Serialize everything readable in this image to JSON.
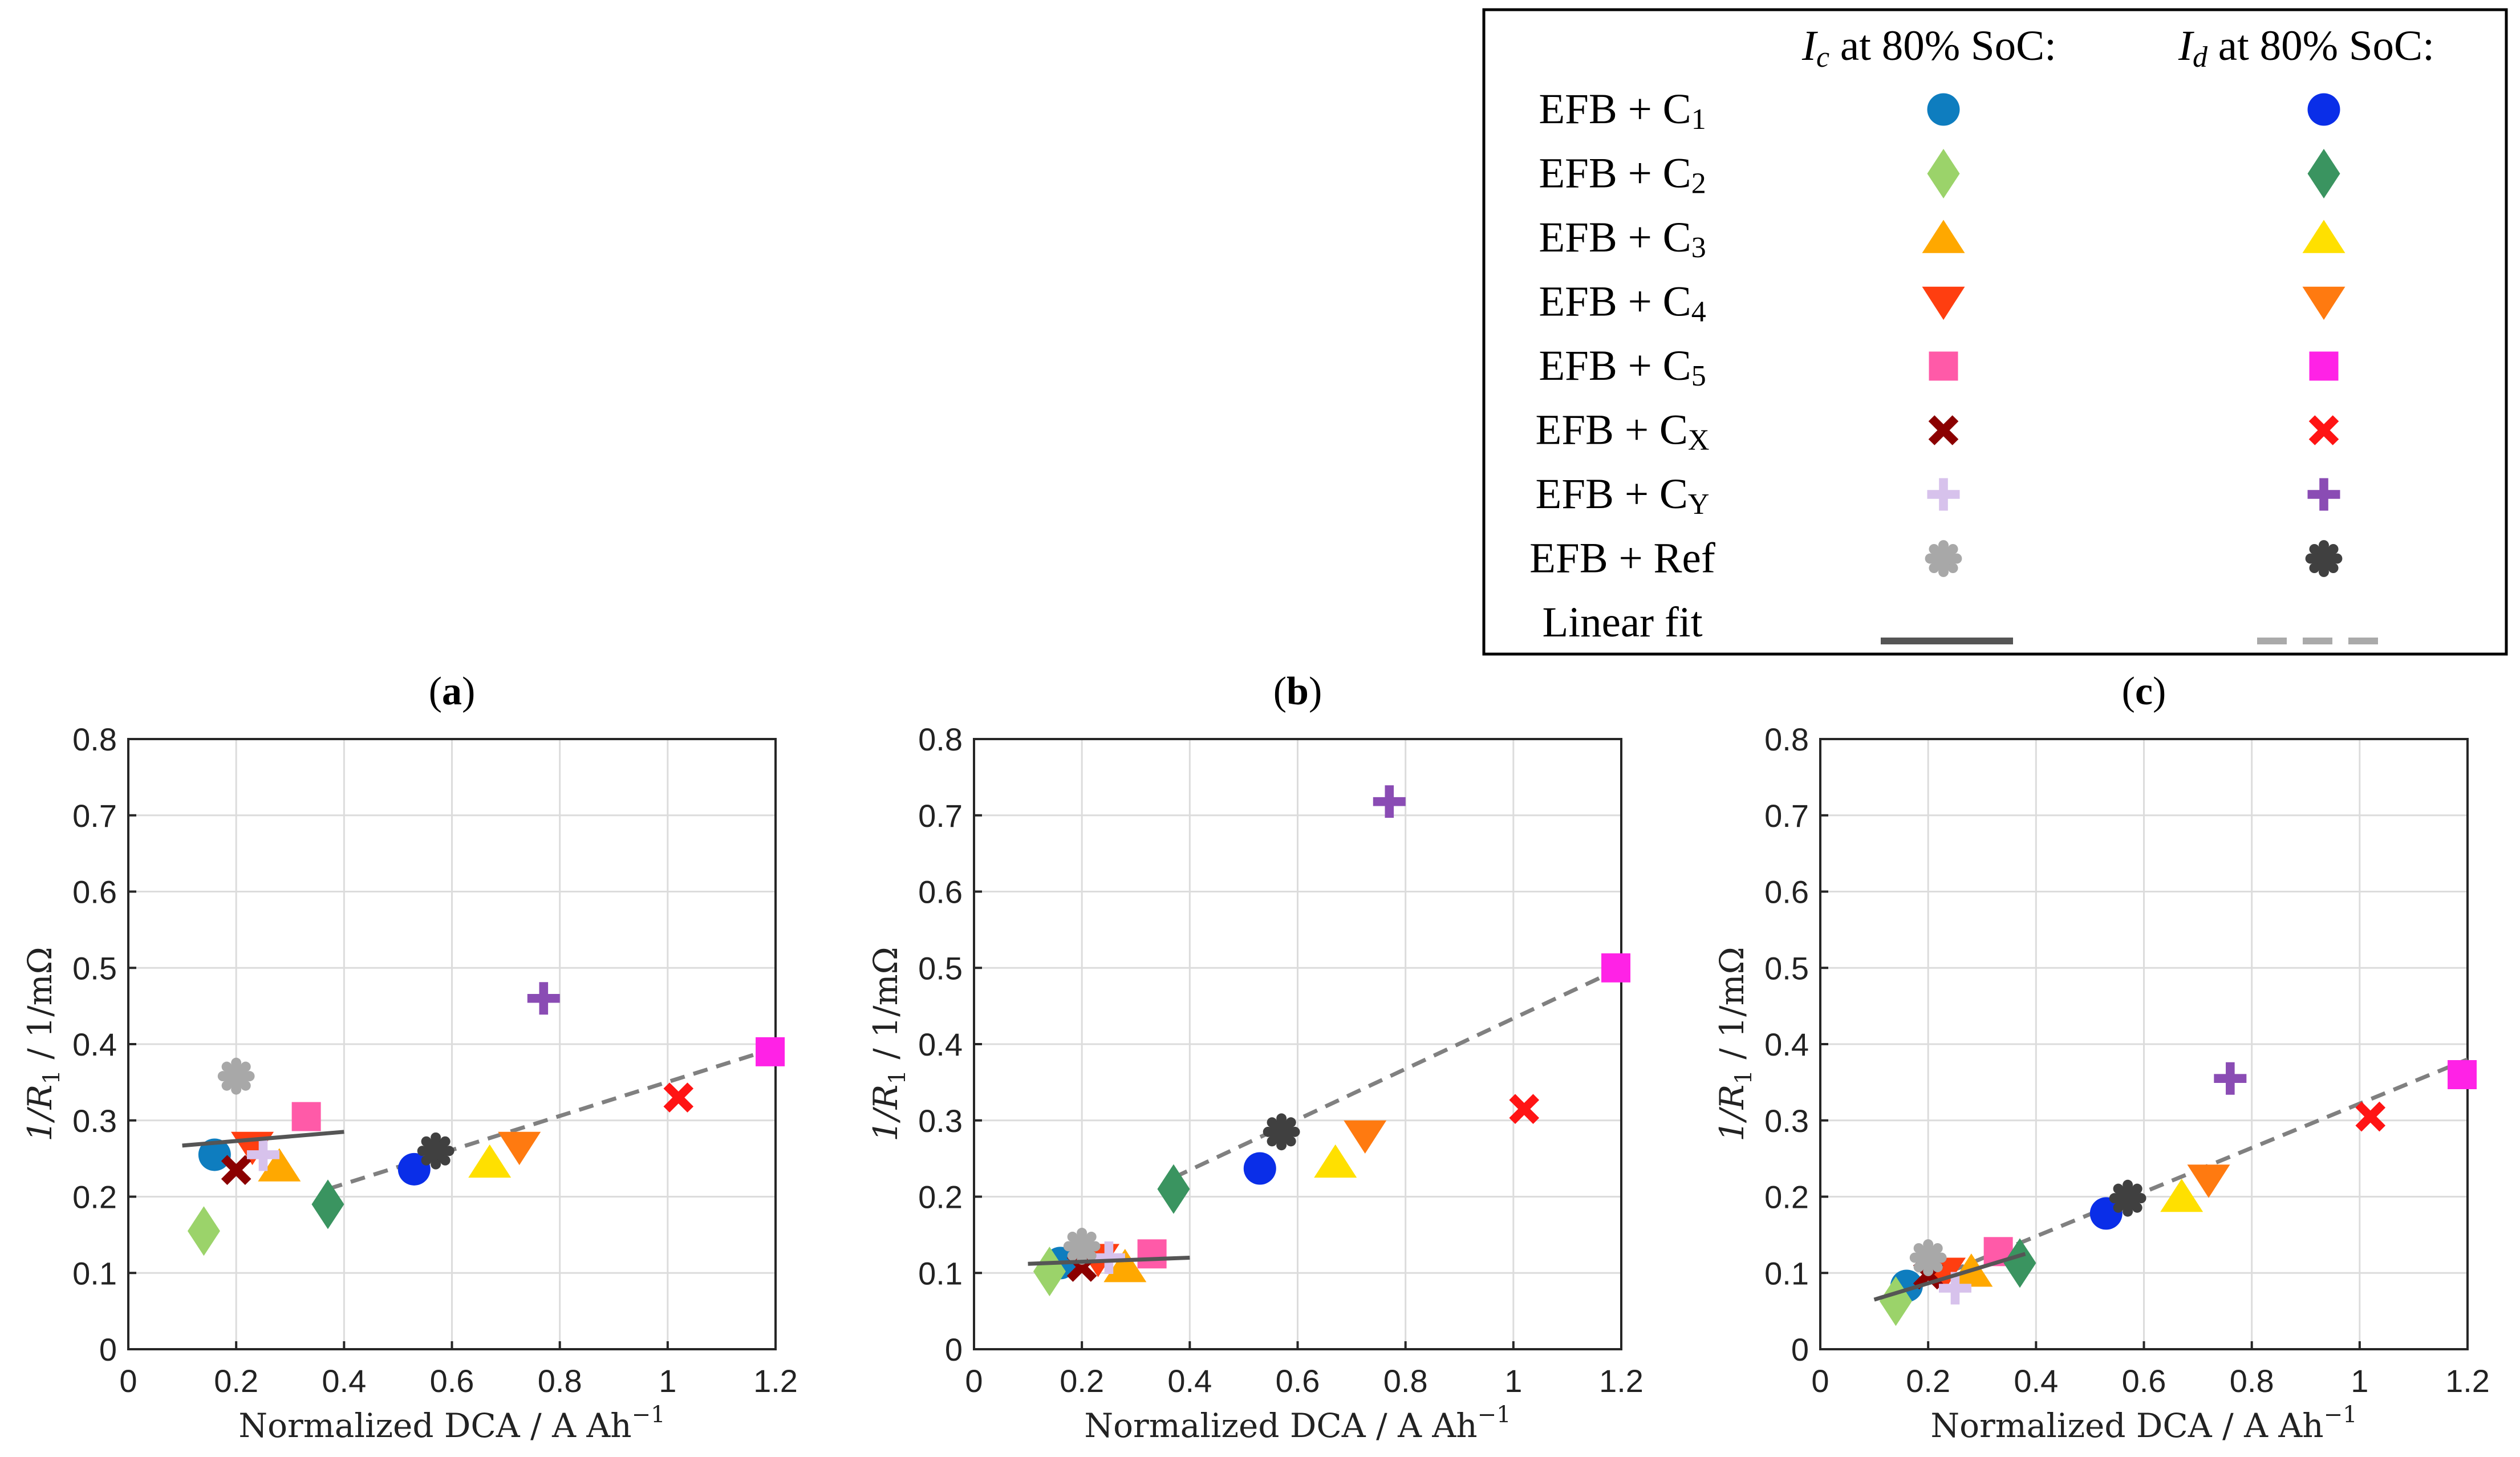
{
  "legend": {
    "col1_header_symbol": "I",
    "col1_header_sub": "c",
    "col1_header_text": " at 80% SoC:",
    "col2_header_symbol": "I",
    "col2_header_sub": "d",
    "col2_header_text": " at 80% SoC:",
    "rows": [
      {
        "prefix": "EFB + C",
        "sub": "1",
        "key": "C1"
      },
      {
        "prefix": "EFB + C",
        "sub": "2",
        "key": "C2"
      },
      {
        "prefix": "EFB + C",
        "sub": "3",
        "key": "C3"
      },
      {
        "prefix": "EFB + C",
        "sub": "4",
        "key": "C4"
      },
      {
        "prefix": "EFB + C",
        "sub": "5",
        "key": "C5"
      },
      {
        "prefix": "EFB + C",
        "sub": "X",
        "key": "CX"
      },
      {
        "prefix": "EFB + C",
        "sub": "Y",
        "key": "CY"
      },
      {
        "prefix": "EFB + Ref",
        "sub": "",
        "key": "Ref"
      }
    ],
    "fit_label": "Linear fit"
  },
  "series_style": {
    "C1": {
      "marker": "circle",
      "color_c": "#0e7dbf",
      "color_d": "#0a2ee8"
    },
    "C2": {
      "marker": "diamond",
      "color_c": "#9bd36a",
      "color_d": "#3a9460"
    },
    "C3": {
      "marker": "tri-up",
      "color_c": "#ffa800",
      "color_d": "#ffe000"
    },
    "C4": {
      "marker": "tri-down",
      "color_c": "#ff3e10",
      "color_d": "#ff7a10"
    },
    "C5": {
      "marker": "square",
      "color_c": "#ff5aa8",
      "color_d": "#ff22e6"
    },
    "CX": {
      "marker": "x",
      "color_c": "#8b0000",
      "color_d": "#ff1414"
    },
    "CY": {
      "marker": "plus",
      "color_c": "#d7c2ec",
      "color_d": "#8a4cb4"
    },
    "Ref": {
      "marker": "gear",
      "color_c": "#a8a8a8",
      "color_d": "#404040"
    },
    "fit_c_color": "#555555",
    "fit_d_color": "#808080"
  },
  "chart_data": [
    {
      "type": "scatter",
      "title": "a",
      "xlabel": "Normalized DCA / A Ah",
      "xlabel_sup": "−1",
      "ylabel": "1/R",
      "ylabel_sub": "1",
      "ylabel_rest": " / 1/mΩ",
      "xlim": [
        0,
        1.2
      ],
      "ylim": [
        0,
        0.8
      ],
      "xticks": [
        "0",
        "0.2",
        "0.4",
        "0.6",
        "0.8",
        "1",
        "1.2"
      ],
      "yticks": [
        "0",
        "0.1",
        "0.2",
        "0.3",
        "0.4",
        "0.5",
        "0.6",
        "0.7",
        "0.8"
      ],
      "grid": true,
      "charge": {
        "C1": [
          0.16,
          0.255
        ],
        "C2": [
          0.14,
          0.155
        ],
        "C3": [
          0.28,
          0.24
        ],
        "C4": [
          0.23,
          0.265
        ],
        "C5": [
          0.33,
          0.305
        ],
        "CX": [
          0.2,
          0.235
        ],
        "CY": [
          0.25,
          0.255
        ],
        "Ref": [
          0.2,
          0.358
        ]
      },
      "discharge": {
        "C1": [
          0.53,
          0.236
        ],
        "C2": [
          0.37,
          0.19
        ],
        "C3": [
          0.67,
          0.245
        ],
        "C4": [
          0.725,
          0.265
        ],
        "C5": [
          1.19,
          0.39
        ],
        "CX": [
          1.02,
          0.33
        ],
        "CY": [
          0.77,
          0.46
        ],
        "Ref": [
          0.57,
          0.26
        ]
      },
      "fit_charge": [
        [
          0.1,
          0.267
        ],
        [
          0.4,
          0.285
        ]
      ],
      "fit_discharge": [
        [
          0.37,
          0.21
        ],
        [
          1.2,
          0.395
        ]
      ]
    },
    {
      "type": "scatter",
      "title": "b",
      "xlabel": "Normalized DCA / A Ah",
      "xlabel_sup": "−1",
      "ylabel": "1/R",
      "ylabel_sub": "1",
      "ylabel_rest": " / 1/mΩ",
      "xlim": [
        0,
        1.2
      ],
      "ylim": [
        0,
        0.8
      ],
      "xticks": [
        "0",
        "0.2",
        "0.4",
        "0.6",
        "0.8",
        "1",
        "1.2"
      ],
      "yticks": [
        "0",
        "0.1",
        "0.2",
        "0.3",
        "0.4",
        "0.5",
        "0.6",
        "0.7",
        "0.8"
      ],
      "grid": true,
      "charge": {
        "C1": [
          0.16,
          0.113
        ],
        "C2": [
          0.14,
          0.102
        ],
        "C3": [
          0.28,
          0.108
        ],
        "C4": [
          0.23,
          0.118
        ],
        "C5": [
          0.33,
          0.125
        ],
        "CX": [
          0.2,
          0.108
        ],
        "CY": [
          0.25,
          0.12
        ],
        "Ref": [
          0.2,
          0.135
        ]
      },
      "discharge": {
        "C1": [
          0.53,
          0.237
        ],
        "C2": [
          0.37,
          0.21
        ],
        "C3": [
          0.67,
          0.245
        ],
        "C4": [
          0.725,
          0.28
        ],
        "C5": [
          1.19,
          0.5
        ],
        "CX": [
          1.02,
          0.315
        ],
        "CY": [
          0.77,
          0.718
        ],
        "Ref": [
          0.57,
          0.285
        ]
      },
      "fit_charge": [
        [
          0.1,
          0.112
        ],
        [
          0.4,
          0.12
        ]
      ],
      "fit_discharge": [
        [
          0.37,
          0.225
        ],
        [
          1.2,
          0.5
        ]
      ]
    },
    {
      "type": "scatter",
      "title": "c",
      "xlabel": "Normalized DCA / A Ah",
      "xlabel_sup": "−1",
      "ylabel": "1/R",
      "ylabel_sub": "1",
      "ylabel_rest": " / 1/mΩ",
      "xlim": [
        0,
        1.2
      ],
      "ylim": [
        0,
        0.8
      ],
      "xticks": [
        "0",
        "0.2",
        "0.4",
        "0.6",
        "0.8",
        "1",
        "1.2"
      ],
      "yticks": [
        "0",
        "0.1",
        "0.2",
        "0.3",
        "0.4",
        "0.5",
        "0.6",
        "0.7",
        "0.8"
      ],
      "grid": true,
      "charge": {
        "C1": [
          0.16,
          0.083
        ],
        "C2": [
          0.14,
          0.063
        ],
        "C3": [
          0.28,
          0.102
        ],
        "C4": [
          0.23,
          0.1
        ],
        "C5": [
          0.33,
          0.128
        ],
        "CX": [
          0.2,
          0.098
        ],
        "CY": [
          0.25,
          0.08
        ],
        "Ref": [
          0.2,
          0.12
        ]
      },
      "discharge": {
        "C1": [
          0.53,
          0.178
        ],
        "C2": [
          0.37,
          0.113
        ],
        "C3": [
          0.67,
          0.2
        ],
        "C4": [
          0.72,
          0.222
        ],
        "C5": [
          1.19,
          0.36
        ],
        "CX": [
          1.02,
          0.305
        ],
        "CY": [
          0.76,
          0.355
        ],
        "Ref": [
          0.57,
          0.198
        ]
      },
      "fit_charge": [
        [
          0.1,
          0.065
        ],
        [
          0.38,
          0.125
        ]
      ],
      "fit_discharge": [
        [
          0.2,
          0.09
        ],
        [
          1.2,
          0.38
        ]
      ]
    }
  ]
}
